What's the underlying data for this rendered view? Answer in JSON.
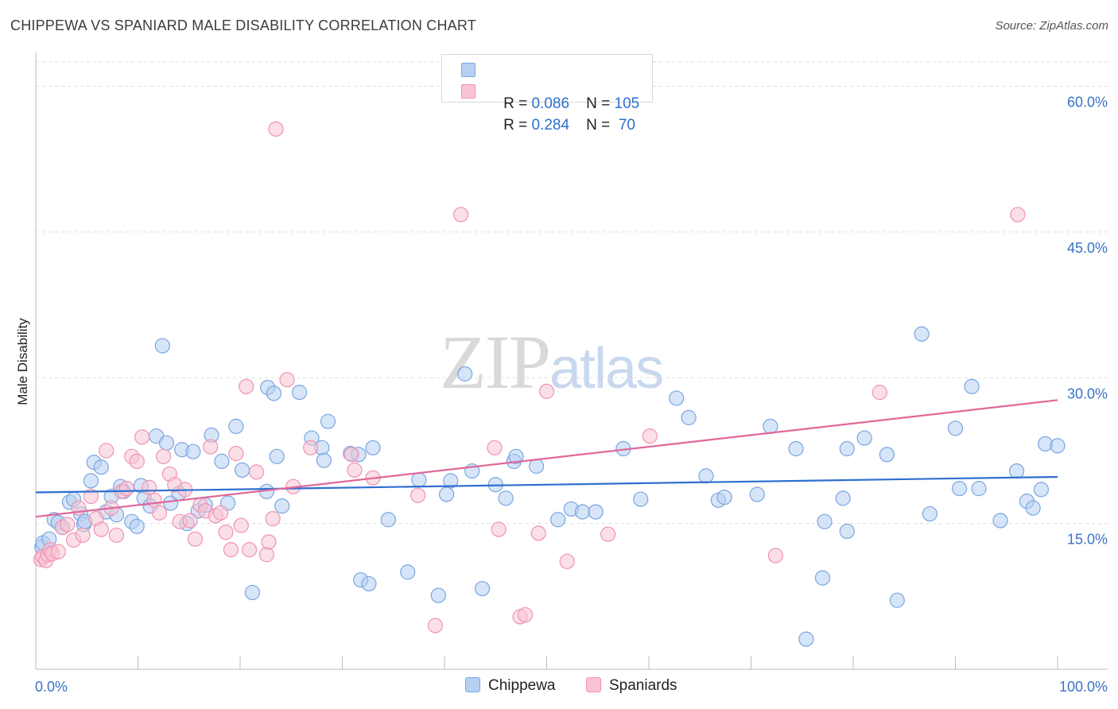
{
  "header": {
    "title": "CHIPPEWA VS SPANIARD MALE DISABILITY CORRELATION CHART",
    "source": "Source: ZipAtlas.com"
  },
  "watermark": {
    "zip": "ZIP",
    "atlas": "atlas"
  },
  "legend": {
    "rows": [
      {
        "r_label": "R = ",
        "r_value": "0.086",
        "n_label": "N = ",
        "n_value": "105"
      },
      {
        "r_label": "R = ",
        "r_value": "0.284",
        "n_label": "N = ",
        "n_value": " 70"
      }
    ],
    "bottom": [
      "Chippewa",
      "Spaniards"
    ]
  },
  "colors": {
    "chippewa_fill": "#b7d0f2",
    "chippewa_stroke": "#7aa6e0",
    "chippewa_line": "#2f6fcf",
    "spaniards_fill": "#f8c4d4",
    "spaniards_stroke": "#ef93b1",
    "spaniards_line": "#e0689a",
    "tick_text": "#3a72c8",
    "grid": "#dddddd"
  },
  "chart_data": {
    "type": "scatter",
    "title": "CHIPPEWA VS SPANIARD MALE DISABILITY CORRELATION CHART",
    "xlabel": "",
    "ylabel": "Male Disability",
    "xlim": [
      0,
      100
    ],
    "ylim": [
      0,
      62.5
    ],
    "x_tick_labels": [
      "0.0%",
      "100.0%"
    ],
    "y_ticks": [
      15,
      30,
      45,
      60
    ],
    "y_tick_labels": [
      "15.0%",
      "30.0%",
      "45.0%",
      "60.0%"
    ],
    "grid": true,
    "legend_position": "top-center",
    "series": [
      {
        "name": "Chippewa",
        "trend": {
          "x": [
            0,
            100
          ],
          "y": [
            18.2,
            19.8
          ]
        },
        "points": [
          [
            0.6,
            12.6
          ],
          [
            0.7,
            13.0
          ],
          [
            1.3,
            13.4
          ],
          [
            1.8,
            15.4
          ],
          [
            2.2,
            15.1
          ],
          [
            2.6,
            14.6
          ],
          [
            3.3,
            17.2
          ],
          [
            3.7,
            17.5
          ],
          [
            4.4,
            16.0
          ],
          [
            4.7,
            14.9
          ],
          [
            5.4,
            19.4
          ],
          [
            5.7,
            21.3
          ],
          [
            6.4,
            20.8
          ],
          [
            6.9,
            16.2
          ],
          [
            7.4,
            17.8
          ],
          [
            7.9,
            15.9
          ],
          [
            8.3,
            18.8
          ],
          [
            8.6,
            18.3
          ],
          [
            9.4,
            15.2
          ],
          [
            9.9,
            14.7
          ],
          [
            10.3,
            18.9
          ],
          [
            10.6,
            17.6
          ],
          [
            11.2,
            16.8
          ],
          [
            11.8,
            24.0
          ],
          [
            12.4,
            33.3
          ],
          [
            12.8,
            23.3
          ],
          [
            13.2,
            17.1
          ],
          [
            14.0,
            18.1
          ],
          [
            14.3,
            22.6
          ],
          [
            14.8,
            15.0
          ],
          [
            15.4,
            22.4
          ],
          [
            15.9,
            16.3
          ],
          [
            16.6,
            16.9
          ],
          [
            17.2,
            24.1
          ],
          [
            18.2,
            21.4
          ],
          [
            18.8,
            17.1
          ],
          [
            19.6,
            25.0
          ],
          [
            20.2,
            20.5
          ],
          [
            21.2,
            7.9
          ],
          [
            22.6,
            18.3
          ],
          [
            22.7,
            29.0
          ],
          [
            23.3,
            28.4
          ],
          [
            23.6,
            21.9
          ],
          [
            24.1,
            16.8
          ],
          [
            25.8,
            28.5
          ],
          [
            27.0,
            23.8
          ],
          [
            28.0,
            22.8
          ],
          [
            28.2,
            21.5
          ],
          [
            28.6,
            25.5
          ],
          [
            30.8,
            22.2
          ],
          [
            31.6,
            22.1
          ],
          [
            31.8,
            9.2
          ],
          [
            32.6,
            8.8
          ],
          [
            33.0,
            22.8
          ],
          [
            34.5,
            15.4
          ],
          [
            36.4,
            10.0
          ],
          [
            37.5,
            19.5
          ],
          [
            39.4,
            7.6
          ],
          [
            40.2,
            18.0
          ],
          [
            40.6,
            19.4
          ],
          [
            42.0,
            30.4
          ],
          [
            42.7,
            20.4
          ],
          [
            43.7,
            8.3
          ],
          [
            45.0,
            19.0
          ],
          [
            46.0,
            17.6
          ],
          [
            46.8,
            21.4
          ],
          [
            47.0,
            21.9
          ],
          [
            49.0,
            20.9
          ],
          [
            51.1,
            15.4
          ],
          [
            52.4,
            16.5
          ],
          [
            53.5,
            16.2
          ],
          [
            54.8,
            16.2
          ],
          [
            57.5,
            22.7
          ],
          [
            59.2,
            17.5
          ],
          [
            62.7,
            27.9
          ],
          [
            63.9,
            25.9
          ],
          [
            65.6,
            19.9
          ],
          [
            66.8,
            17.4
          ],
          [
            67.4,
            17.7
          ],
          [
            70.6,
            18.0
          ],
          [
            71.9,
            25.0
          ],
          [
            74.4,
            22.7
          ],
          [
            75.4,
            3.1
          ],
          [
            77.0,
            9.4
          ],
          [
            77.2,
            15.2
          ],
          [
            79.0,
            17.6
          ],
          [
            79.4,
            14.2
          ],
          [
            79.4,
            22.7
          ],
          [
            81.1,
            23.8
          ],
          [
            83.3,
            22.1
          ],
          [
            84.3,
            7.1
          ],
          [
            86.7,
            34.5
          ],
          [
            87.5,
            16.0
          ],
          [
            90.0,
            24.8
          ],
          [
            90.4,
            18.6
          ],
          [
            91.6,
            29.1
          ],
          [
            92.3,
            18.6
          ],
          [
            94.4,
            15.3
          ],
          [
            96.0,
            20.4
          ],
          [
            97.0,
            17.3
          ],
          [
            97.6,
            16.6
          ],
          [
            98.4,
            18.5
          ],
          [
            98.8,
            23.2
          ],
          [
            100.0,
            23.0
          ],
          [
            4.8,
            15.2
          ]
        ]
      },
      {
        "name": "Spaniards",
        "trend": {
          "x": [
            0,
            100
          ],
          "y": [
            15.7,
            27.7
          ]
        },
        "points": [
          [
            0.5,
            11.3
          ],
          [
            0.7,
            11.6
          ],
          [
            1.0,
            11.2
          ],
          [
            1.2,
            11.8
          ],
          [
            1.4,
            12.3
          ],
          [
            1.6,
            11.9
          ],
          [
            2.2,
            12.1
          ],
          [
            2.6,
            14.6
          ],
          [
            3.1,
            14.9
          ],
          [
            3.7,
            13.3
          ],
          [
            4.2,
            16.6
          ],
          [
            4.6,
            13.8
          ],
          [
            5.4,
            17.8
          ],
          [
            5.9,
            15.5
          ],
          [
            6.4,
            14.4
          ],
          [
            6.9,
            22.5
          ],
          [
            7.4,
            16.6
          ],
          [
            7.9,
            13.8
          ],
          [
            8.4,
            18.3
          ],
          [
            8.9,
            18.6
          ],
          [
            9.4,
            21.9
          ],
          [
            9.9,
            21.4
          ],
          [
            10.4,
            23.9
          ],
          [
            11.1,
            18.7
          ],
          [
            11.6,
            17.4
          ],
          [
            12.1,
            16.1
          ],
          [
            12.5,
            21.9
          ],
          [
            13.1,
            20.1
          ],
          [
            13.6,
            19.0
          ],
          [
            14.1,
            15.2
          ],
          [
            14.6,
            18.5
          ],
          [
            15.1,
            15.3
          ],
          [
            15.6,
            13.4
          ],
          [
            16.1,
            16.9
          ],
          [
            16.6,
            16.3
          ],
          [
            17.1,
            22.9
          ],
          [
            17.6,
            15.8
          ],
          [
            18.1,
            16.1
          ],
          [
            18.6,
            14.1
          ],
          [
            19.1,
            12.3
          ],
          [
            19.6,
            22.2
          ],
          [
            20.1,
            14.8
          ],
          [
            20.6,
            29.1
          ],
          [
            20.9,
            12.3
          ],
          [
            21.6,
            20.3
          ],
          [
            22.6,
            11.8
          ],
          [
            22.8,
            13.1
          ],
          [
            23.2,
            15.5
          ],
          [
            23.5,
            55.6
          ],
          [
            24.6,
            29.8
          ],
          [
            25.2,
            18.8
          ],
          [
            26.9,
            22.8
          ],
          [
            30.9,
            22.1
          ],
          [
            31.2,
            20.5
          ],
          [
            33.0,
            19.7
          ],
          [
            37.4,
            17.9
          ],
          [
            39.1,
            4.5
          ],
          [
            41.6,
            46.8
          ],
          [
            44.9,
            22.8
          ],
          [
            45.3,
            14.4
          ],
          [
            47.4,
            5.4
          ],
          [
            47.9,
            5.6
          ],
          [
            49.2,
            14.0
          ],
          [
            50.0,
            28.6
          ],
          [
            52.0,
            11.1
          ],
          [
            56.0,
            13.9
          ],
          [
            60.1,
            24.0
          ],
          [
            72.4,
            11.7
          ],
          [
            82.6,
            28.5
          ],
          [
            96.1,
            46.8
          ]
        ]
      }
    ]
  }
}
